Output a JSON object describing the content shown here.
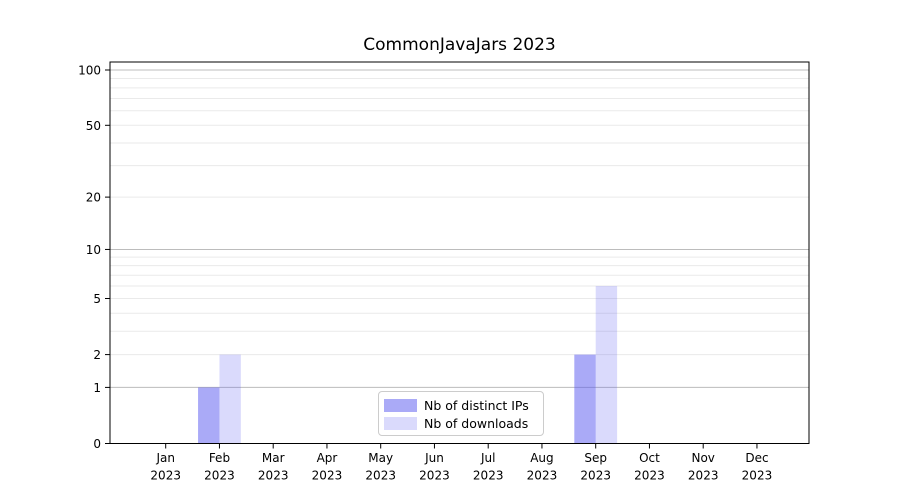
{
  "chart_data": {
    "type": "bar",
    "title": "CommonJavaJars 2023",
    "categories": [
      "Jan",
      "Feb",
      "Mar",
      "Apr",
      "May",
      "Jun",
      "Jul",
      "Aug",
      "Sep",
      "Oct",
      "Nov",
      "Dec"
    ],
    "category_year": "2023",
    "series": [
      {
        "name": "Nb of distinct IPs",
        "color": "rgba(85,85,240,0.5)",
        "values": [
          0,
          1,
          0,
          0,
          0,
          0,
          0,
          0,
          2,
          0,
          0,
          0
        ]
      },
      {
        "name": "Nb of downloads",
        "color": "rgba(85,85,240,0.22)",
        "values": [
          0,
          2,
          0,
          0,
          0,
          0,
          0,
          0,
          6,
          0,
          0,
          0
        ]
      }
    ],
    "y_axis": {
      "ticks": [
        0,
        1,
        2,
        5,
        10,
        20,
        50,
        100
      ],
      "scale": "log10(value+1)",
      "range": [
        0,
        100
      ]
    },
    "x_axis": {
      "tick_count": 12
    },
    "grid": {
      "major_values": [
        1,
        10,
        100
      ],
      "minor_values": [
        2,
        3,
        4,
        5,
        6,
        7,
        8,
        9,
        20,
        30,
        40,
        50,
        60,
        70,
        80,
        90
      ],
      "major_color": "#bcbcbc",
      "minor_color": "#eaeaea"
    },
    "legend": {
      "position": "inside-bottom-center",
      "border_color": "#cccccc",
      "background": "#ffffff"
    },
    "spine_color": "#000000",
    "text_color": "#000000"
  }
}
